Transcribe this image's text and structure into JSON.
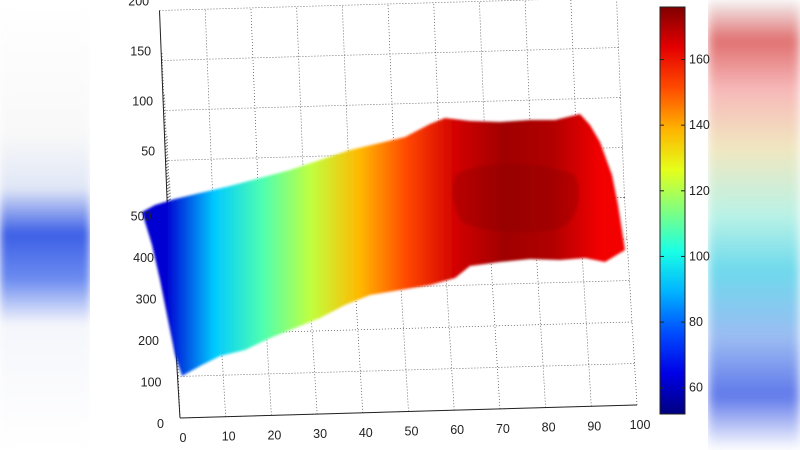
{
  "chart_data": {
    "type": "surface",
    "title": "",
    "xlabel": "",
    "ylabel": "",
    "zlabel": "",
    "x_range": [
      0,
      100
    ],
    "y_range": [
      0,
      500
    ],
    "z_range": [
      0,
      200
    ],
    "x_ticks": [
      "0",
      "10",
      "20",
      "30",
      "40",
      "50",
      "60",
      "70",
      "80",
      "90",
      "100"
    ],
    "y_ticks": [
      "0",
      "100",
      "200",
      "300",
      "400",
      "500"
    ],
    "z_ticks": [
      "50",
      "100",
      "150",
      "200"
    ],
    "colorbar": {
      "min": 52,
      "max": 176,
      "ticks": [
        "60",
        "80",
        "100",
        "120",
        "140",
        "160"
      ],
      "tick_values": [
        60,
        80,
        100,
        120,
        140,
        160
      ],
      "colormap": "jet"
    },
    "surface_color_profile": {
      "x": [
        5,
        15,
        25,
        35,
        45,
        55,
        65,
        75,
        85,
        95
      ],
      "value": [
        62,
        92,
        108,
        122,
        138,
        152,
        166,
        172,
        170,
        162
      ]
    },
    "grid": true
  }
}
